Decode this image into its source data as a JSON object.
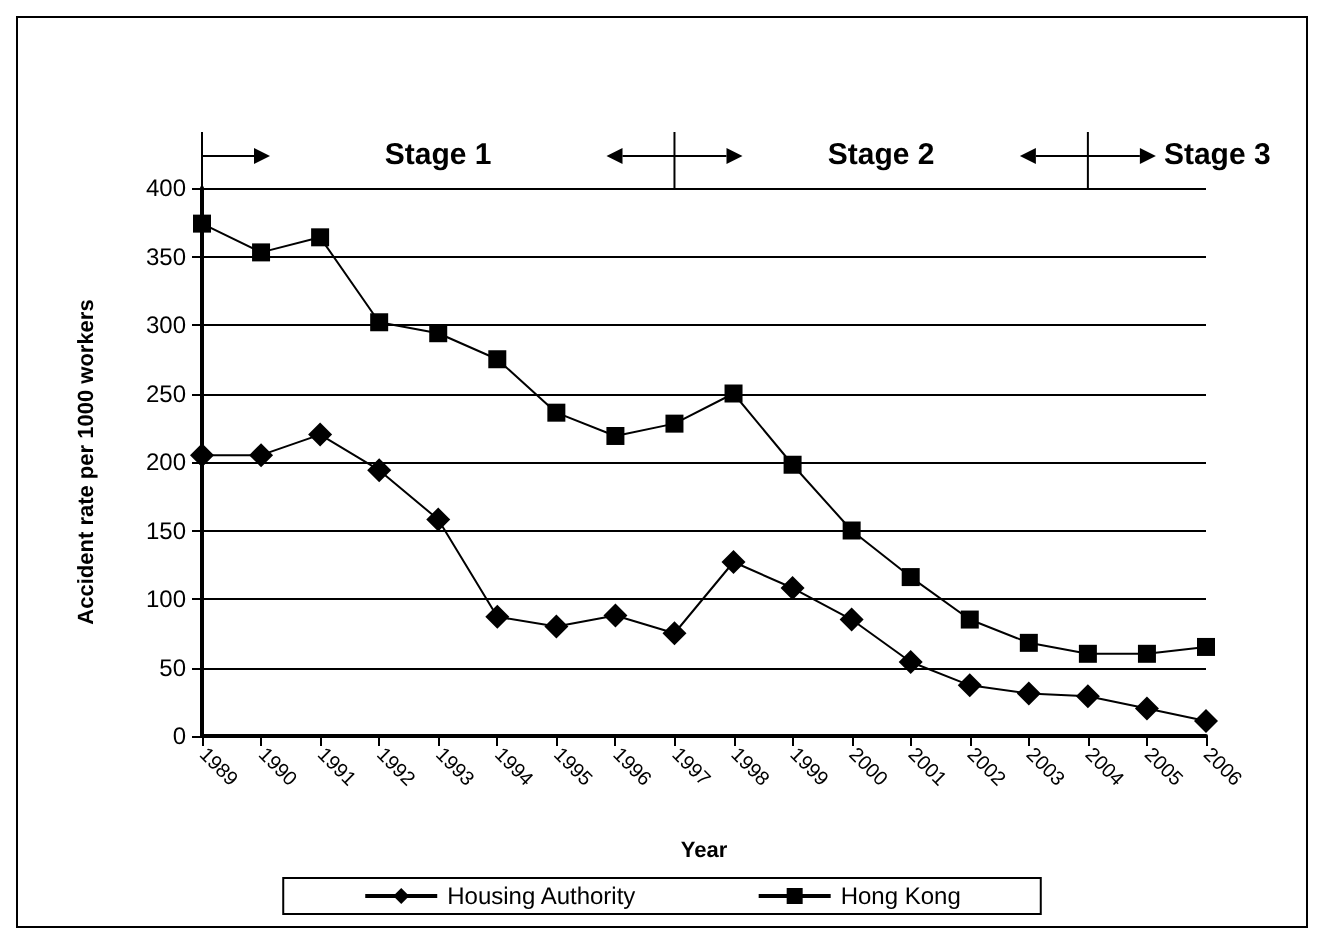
{
  "chart_data": {
    "type": "line",
    "xlabel": "Year",
    "ylabel": "Accident rate per 1000 workers",
    "categories": [
      "1989",
      "1990",
      "1991",
      "1992",
      "1993",
      "1994",
      "1995",
      "1996",
      "1997",
      "1998",
      "1999",
      "2000",
      "2001",
      "2002",
      "2003",
      "2004",
      "2005",
      "2006"
    ],
    "series": [
      {
        "name": "Housing Authority",
        "color": "#000000",
        "marker": "diamond",
        "values": [
          205,
          205,
          220,
          194,
          158,
          87,
          80,
          88,
          75,
          127,
          108,
          85,
          54,
          37,
          31,
          29,
          20,
          11
        ]
      },
      {
        "name": "Hong Kong",
        "color": "#000000",
        "marker": "square",
        "values": [
          374,
          353,
          364,
          302,
          294,
          275,
          236,
          219,
          228,
          250,
          198,
          150,
          116,
          85,
          68,
          60,
          60,
          65
        ]
      }
    ],
    "ylim": [
      0,
      400
    ],
    "yticks": [
      0,
      50,
      100,
      150,
      200,
      250,
      300,
      350,
      400
    ],
    "grid": "y",
    "legend": "bottom",
    "line_style": "solid",
    "annotations": [
      "Stage 1",
      "Stage 2",
      "Stage 3"
    ]
  }
}
